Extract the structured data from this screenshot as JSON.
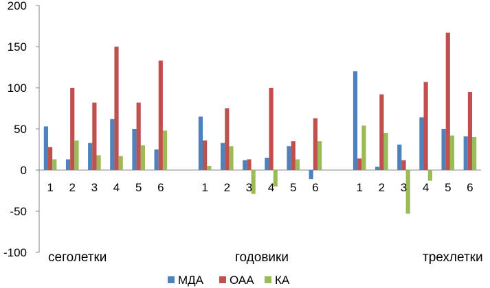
{
  "chart_data": {
    "type": "bar",
    "title": "",
    "xlabel": "",
    "ylabel": "",
    "ylim": [
      -100,
      200
    ],
    "yticks": [
      -100,
      -50,
      0,
      50,
      100,
      150,
      200
    ],
    "grid": false,
    "legend_position": "bottom",
    "groups": [
      "сеголетки",
      "годовики",
      "трехлетки"
    ],
    "categories": [
      "1",
      "2",
      "3",
      "4",
      "5",
      "6",
      "",
      "1",
      "2",
      "3",
      "4",
      "5",
      "6",
      "",
      "1",
      "2",
      "3",
      "4",
      "5",
      "6"
    ],
    "series": [
      {
        "name": "МДА",
        "color": "#4F81BD",
        "values": [
          53,
          13,
          33,
          62,
          50,
          25,
          null,
          65,
          33,
          12,
          15,
          29,
          -11,
          null,
          120,
          4,
          31,
          64,
          50,
          41
        ]
      },
      {
        "name": "ОАА",
        "color": "#C0504D",
        "values": [
          28,
          100,
          82,
          150,
          82,
          133,
          null,
          36,
          75,
          13,
          100,
          35,
          63,
          null,
          14,
          92,
          12,
          107,
          167,
          95
        ]
      },
      {
        "name": "КА",
        "color": "#9BBB59",
        "values": [
          13,
          36,
          18,
          17,
          30,
          48,
          null,
          5,
          29,
          -29,
          -20,
          13,
          35,
          null,
          54,
          45,
          -53,
          -13,
          42,
          40
        ]
      }
    ]
  }
}
